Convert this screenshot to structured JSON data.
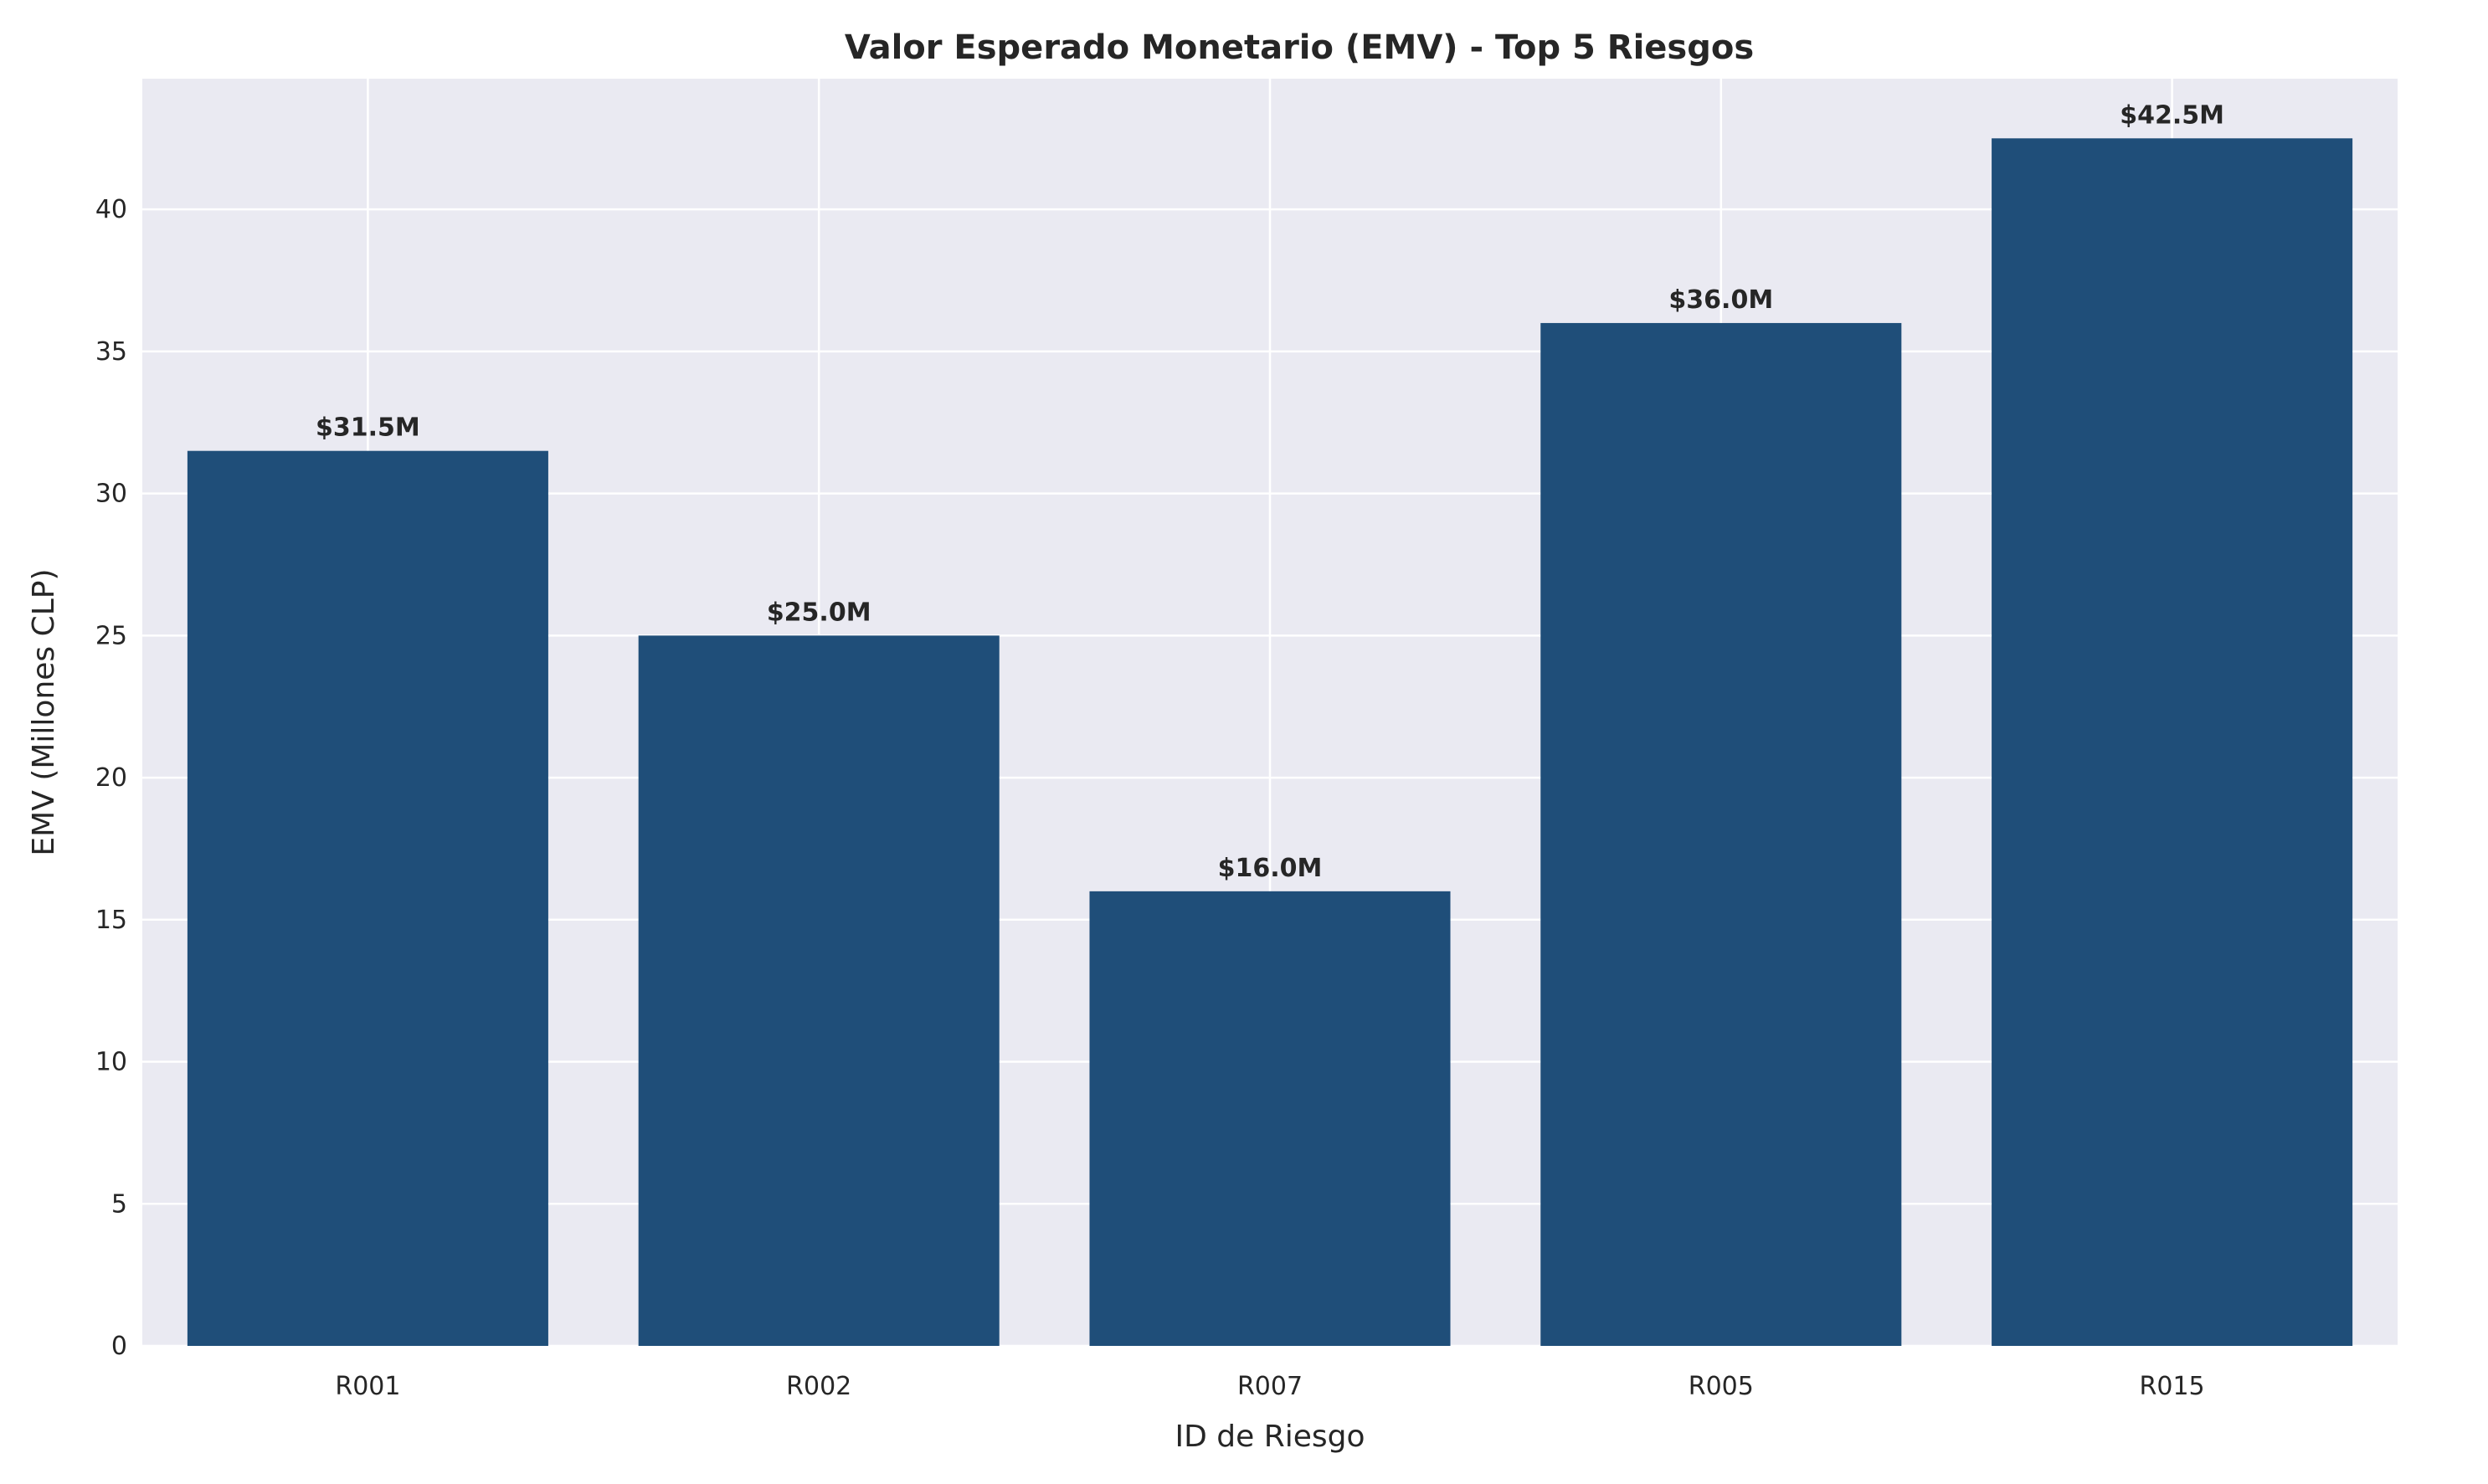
{
  "chart_data": {
    "type": "bar",
    "title": "Valor Esperado Monetario (EMV) - Top 5 Riesgos",
    "xlabel": "ID de Riesgo",
    "ylabel": "EMV (Millones CLP)",
    "categories": [
      "R001",
      "R002",
      "R007",
      "R005",
      "R015"
    ],
    "values": [
      31.5,
      25.0,
      16.0,
      36.0,
      42.5
    ],
    "data_labels": [
      "$31.5M",
      "$25.0M",
      "$16.0M",
      "$36.0M",
      "$42.5M"
    ],
    "ylim": [
      0,
      44.6
    ],
    "yticks": [
      0,
      5,
      10,
      15,
      20,
      25,
      30,
      35,
      40
    ],
    "grid": true,
    "legend": "none",
    "colors": {
      "bar": "#1f4e79",
      "plot_background": "#eaeaf2",
      "grid": "#ffffff",
      "text": "#262626"
    }
  }
}
